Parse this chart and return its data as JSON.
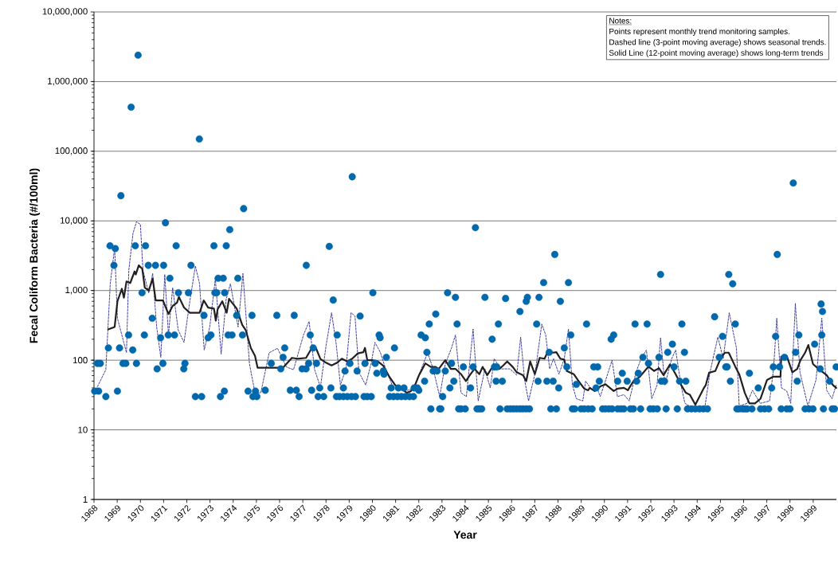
{
  "chart_data": {
    "type": "scatter",
    "xlabel": "Year",
    "ylabel": "Fecal Coliform Bacteria (#/100ml)",
    "annotations": [
      "Notes:",
      "Points represent monthly trend monitoring samples.",
      "Dashed line (3-point moving average) shows seasonal trends.",
      "Solid Line (12-point moving average) shows long-term trends"
    ],
    "xlim": [
      1968,
      2000
    ],
    "xticks": [
      1968,
      1969,
      1970,
      1971,
      1972,
      1973,
      1974,
      1975,
      1976,
      1977,
      1978,
      1979,
      1980,
      1981,
      1982,
      1983,
      1984,
      1985,
      1986,
      1987,
      1988,
      1989,
      1990,
      1991,
      1992,
      1993,
      1994,
      1995,
      1996,
      1997,
      1998,
      1999
    ],
    "ylim": [
      1,
      10000000
    ],
    "yticks": [
      1,
      10,
      100,
      {
        "value": 1000,
        "label": "1,000"
      },
      {
        "value": 10000,
        "label": "10,000"
      },
      {
        "value": 100000,
        "label": "100,000"
      },
      {
        "value": 1000000,
        "label": "1,000,000"
      },
      {
        "value": 10000000,
        "label": "10,000,000"
      }
    ],
    "log": "y",
    "grid": "y",
    "series": [
      {
        "marker": "circle",
        "color": "#0068ad",
        "x": [
          1968.03,
          1968.2,
          1968.15,
          1968.27,
          1968.51,
          1968.62,
          1968.69,
          1968.86,
          1968.92,
          1969.01,
          1969.1,
          1969.16,
          1969.25,
          1969.37,
          1969.49,
          1969.6,
          1969.67,
          1969.78,
          1969.83,
          1969.9,
          1970.07,
          1970.17,
          1970.22,
          1970.34,
          1970.51,
          1970.65,
          1970.72,
          1970.87,
          1970.97,
          1971.0,
          1971.08,
          1971.2,
          1971.27,
          1971.47,
          1971.54,
          1971.64,
          1971.87,
          1971.92,
          1972.07,
          1972.18,
          1972.37,
          1972.54,
          1972.64,
          1972.74,
          1972.92,
          1973.04,
          1973.17,
          1973.21,
          1973.29,
          1973.35,
          1973.45,
          1973.57,
          1973.62,
          1973.63,
          1973.7,
          1973.78,
          1973.85,
          1973.95,
          1974.15,
          1974.2,
          1974.4,
          1974.45,
          1974.64,
          1974.81,
          1974.85,
          1974.96,
          1975.02,
          1975.38,
          1975.64,
          1975.88,
          1976.05,
          1976.15,
          1976.22,
          1976.46,
          1976.63,
          1976.72,
          1976.84,
          1976.97,
          1977.14,
          1977.15,
          1977.25,
          1977.32,
          1977.38,
          1977.45,
          1977.59,
          1977.66,
          1977.73,
          1977.9,
          1978.14,
          1978.21,
          1978.31,
          1978.45,
          1978.48,
          1978.58,
          1978.75,
          1978.92,
          1979.1,
          1979.27,
          1978.75,
          1978.82,
          1979.03,
          1979.13,
          1979.34,
          1979.47,
          1979.64,
          1979.68,
          1979.78,
          1979.95,
          1980.02,
          1980.12,
          1980.19,
          1980.29,
          1980.33,
          1980.47,
          1980.5,
          1980.6,
          1980.74,
          1980.81,
          1980.91,
          1980.95,
          1981.08,
          1981.12,
          1981.25,
          1981.36,
          1981.42,
          1981.6,
          1981.77,
          1981.8,
          1981.94,
          1982.0,
          1982.1,
          1982.25,
          1982.28,
          1982.35,
          1982.45,
          1982.52,
          1982.62,
          1982.73,
          1982.79,
          1982.9,
          1982.95,
          1983.03,
          1983.14,
          1983.24,
          1983.34,
          1983.41,
          1983.51,
          1983.58,
          1983.65,
          1983.72,
          1983.82,
          1983.92,
          1984.0,
          1984.23,
          1984.34,
          1984.44,
          1984.51,
          1984.61,
          1984.71,
          1984.85,
          1985.16,
          1985.26,
          1985.33,
          1985.36,
          1985.43,
          1985.5,
          1985.6,
          1985.74,
          1985.81,
          1985.95,
          1986.08,
          1986.22,
          1986.36,
          1986.49,
          1986.63,
          1986.77,
          1986.36,
          1986.63,
          1986.68,
          1987.08,
          1987.14,
          1987.18,
          1987.38,
          1987.52,
          1987.62,
          1987.69,
          1987.79,
          1987.86,
          1987.93,
          1988.03,
          1988.1,
          1988.27,
          1988.38,
          1988.45,
          1988.55,
          1988.62,
          1988.79,
          1988.72,
          1988.99,
          1989.23,
          1989.13,
          1989.3,
          1989.47,
          1989.54,
          1989.64,
          1989.71,
          1989.78,
          1989.92,
          1990.05,
          1990.19,
          1990.29,
          1990.33,
          1990.4,
          1990.57,
          1990.57,
          1990.71,
          1990.77,
          1990.84,
          1990.98,
          1991.12,
          1991.25,
          1991.32,
          1991.39,
          1991.46,
          1991.56,
          1991.66,
          1991.84,
          1991.9,
          1991.97,
          1992.11,
          1992.28,
          1992.35,
          1992.42,
          1992.45,
          1992.59,
          1992.66,
          1992.73,
          1992.93,
          1993.0,
          1993.14,
          1993.24,
          1993.34,
          1993.45,
          1993.51,
          1993.58,
          1993.75,
          1993.92,
          1994.1,
          1994.27,
          1994.44,
          1994.75,
          1994.95,
          1995.09,
          1995.23,
          1995.29,
          1995.36,
          1995.43,
          1995.53,
          1995.64,
          1995.71,
          1995.81,
          1995.95,
          1996.05,
          1996.15,
          1996.25,
          1996.36,
          1996.63,
          1996.73,
          1996.9,
          1997.08,
          1997.21,
          1997.28,
          1997.38,
          1997.45,
          1997.55,
          1997.62,
          1997.76,
          1997.86,
          1998.0,
          1998.14,
          1998.24,
          1998.31,
          1998.38,
          1998.65,
          1998.82,
          1998.99,
          1999.06,
          1999.3,
          1999.34,
          1999.37,
          1999.4,
          1999.44,
          1999.71,
          1999.82,
          1999.92,
          1999.99
        ],
        "values": [
          36,
          36,
          90,
          90,
          30,
          150,
          4400,
          2300,
          4000,
          36,
          150,
          23000,
          90,
          90,
          230,
          430000,
          140,
          4400,
          90,
          2400000,
          930,
          230,
          4400,
          2300,
          400,
          2300,
          75,
          210,
          90,
          2300,
          9400,
          230,
          1500,
          230,
          4400,
          930,
          75,
          90,
          930,
          2300,
          30,
          150000,
          30,
          440,
          210,
          230,
          4400,
          930,
          930,
          1500,
          30,
          1500,
          36,
          930,
          4400,
          230,
          7500,
          230,
          440,
          1500,
          230,
          15000,
          36,
          440,
          30,
          36,
          30,
          37,
          90,
          440,
          75,
          110,
          150,
          37,
          440,
          37,
          30,
          75,
          75,
          2300,
          90,
          230,
          37,
          150,
          90,
          30,
          40,
          30,
          4300,
          40,
          730,
          30,
          230,
          30,
          30,
          30,
          30,
          30,
          40,
          70,
          90,
          43000,
          70,
          430,
          30,
          90,
          30,
          30,
          930,
          90,
          65,
          230,
          210,
          70,
          63,
          110,
          30,
          40,
          30,
          150,
          30,
          40,
          30,
          40,
          30,
          30,
          30,
          40,
          40,
          37,
          230,
          50,
          210,
          130,
          330,
          20,
          70,
          460,
          70,
          20,
          20,
          30,
          70,
          930,
          40,
          90,
          50,
          800,
          330,
          20,
          20,
          80,
          20,
          40,
          80,
          8000,
          20,
          20,
          20,
          800,
          200,
          80,
          50,
          80,
          330,
          20,
          50,
          770,
          20,
          20,
          20,
          20,
          20,
          20,
          20,
          20,
          500,
          700,
          800,
          330,
          50,
          800,
          1300,
          50,
          130,
          20,
          50,
          3300,
          20,
          40,
          700,
          150,
          80,
          1300,
          230,
          20,
          45,
          20,
          20,
          330,
          20,
          20,
          20,
          80,
          40,
          80,
          50,
          20,
          20,
          20,
          200,
          20,
          230,
          50,
          20,
          20,
          65,
          20,
          50,
          20,
          20,
          330,
          50,
          65,
          20,
          110,
          330,
          90,
          20,
          20,
          20,
          110,
          1700,
          50,
          50,
          20,
          130,
          170,
          80,
          20,
          50,
          330,
          130,
          50,
          20,
          20,
          20,
          20,
          20,
          20,
          420,
          110,
          220,
          80,
          80,
          1700,
          50,
          1250,
          330,
          20,
          20,
          20,
          20,
          20,
          65,
          20,
          40,
          20,
          20,
          20,
          40,
          80,
          220,
          3300,
          80,
          20,
          110,
          20,
          20,
          35000,
          130,
          50,
          230,
          20,
          20,
          20,
          170,
          75,
          640,
          230,
          500,
          20,
          50,
          20,
          20,
          80
        ]
      },
      {
        "type": "line",
        "line_style": "dashed",
        "color": "#2e2d8f",
        "x": [
          1968.09,
          1968.51,
          1968.7,
          1968.89,
          1969.01,
          1969.4,
          1969.5,
          1969.68,
          1969.83,
          1970.0,
          1970.11,
          1970.36,
          1970.53,
          1970.7,
          1970.88,
          1971.05,
          1971.21,
          1971.39,
          1971.63,
          1971.88,
          1972.13,
          1972.37,
          1972.55,
          1972.75,
          1972.99,
          1973.23,
          1973.48,
          1973.7,
          1973.88,
          1974.21,
          1974.42,
          1974.7,
          1974.94,
          1975.19,
          1975.55,
          1975.91,
          1976.29,
          1976.6,
          1977.03,
          1977.27,
          1977.51,
          1977.76,
          1978.0,
          1978.24,
          1978.44,
          1978.62,
          1978.86,
          1979.08,
          1979.25,
          1979.42,
          1979.71,
          1979.94,
          1980.11,
          1980.34,
          1980.57,
          1980.85,
          1981.18,
          1981.53,
          1981.77,
          1982.11,
          1982.38,
          1982.62,
          1982.9,
          1983.14,
          1983.41,
          1983.58,
          1983.82,
          1984.05,
          1984.34,
          1984.56,
          1984.85,
          1985.08,
          1985.25,
          1985.53,
          1985.93,
          1986.22,
          1986.39,
          1986.56,
          1986.73,
          1987.02,
          1987.3,
          1987.47,
          1987.64,
          1987.81,
          1988.04,
          1988.27,
          1988.45,
          1988.62,
          1988.79,
          1989.07,
          1989.19,
          1989.47,
          1989.64,
          1989.82,
          1990.04,
          1990.33,
          1990.56,
          1990.84,
          1991.07,
          1991.36,
          1991.58,
          1991.81,
          1992.04,
          1992.27,
          1992.42,
          1992.61,
          1992.9,
          1993.07,
          1993.3,
          1993.47,
          1993.87,
          1994.32,
          1994.55,
          1994.89,
          1995.12,
          1995.38,
          1995.69,
          1995.81,
          1996.15,
          1996.38,
          1996.72,
          1997.12,
          1997.29,
          1997.43,
          1997.63,
          1997.86,
          1998.03,
          1998.23,
          1998.43,
          1998.77,
          1999.12,
          1999.37,
          1999.58,
          1999.81,
          1999.99
        ],
        "values": [
          38,
          73,
          1250,
          4100,
          400,
          128,
          1950,
          6600,
          9700,
          8900,
          1950,
          920,
          1760,
          300,
          110,
          1700,
          230,
          1100,
          270,
          180,
          700,
          2250,
          1250,
          140,
          300,
          1480,
          122,
          760,
          1250,
          300,
          1760,
          89,
          34,
          34,
          128,
          148,
          80,
          73,
          230,
          360,
          73,
          41,
          160,
          480,
          170,
          44,
          75,
          480,
          430,
          67,
          44,
          88,
          180,
          130,
          75,
          44,
          37,
          37,
          40,
          75,
          128,
          75,
          30,
          88,
          150,
          230,
          34,
          30,
          280,
          26,
          75,
          40,
          105,
          75,
          75,
          61,
          215,
          52,
          26,
          67,
          330,
          230,
          75,
          105,
          63,
          105,
          280,
          44,
          28,
          26,
          50,
          37,
          44,
          30,
          50,
          100,
          30,
          32,
          26,
          67,
          105,
          140,
          28,
          44,
          210,
          44,
          105,
          140,
          44,
          24,
          20,
          20,
          67,
          215,
          105,
          480,
          150,
          22,
          24,
          37,
          24,
          26,
          75,
          400,
          40,
          36,
          24,
          650,
          67,
          22,
          52,
          400,
          37,
          28,
          44
        ]
      },
      {
        "type": "line",
        "line_style": "solid",
        "color": "#231f20",
        "x": [
          1968.61,
          1968.89,
          1969.01,
          1969.2,
          1969.29,
          1969.4,
          1969.56,
          1969.75,
          1969.8,
          1969.93,
          1970.08,
          1970.19,
          1970.36,
          1970.53,
          1970.66,
          1970.97,
          1971.21,
          1971.39,
          1971.58,
          1971.66,
          1971.88,
          1972.13,
          1972.55,
          1972.73,
          1972.92,
          1973.17,
          1973.25,
          1973.33,
          1973.53,
          1973.72,
          1973.82,
          1974.15,
          1974.39,
          1974.54,
          1974.76,
          1974.94,
          1975.05,
          1975.55,
          1976.15,
          1976.53,
          1976.77,
          1977.14,
          1977.38,
          1977.57,
          1977.76,
          1978.0,
          1978.24,
          1978.48,
          1978.68,
          1978.92,
          1979.13,
          1979.37,
          1979.61,
          1979.68,
          1979.78,
          1979.99,
          1980.23,
          1980.47,
          1980.74,
          1980.98,
          1981.18,
          1981.49,
          1981.66,
          1981.84,
          1982.0,
          1982.28,
          1982.52,
          1982.73,
          1982.86,
          1983.14,
          1983.38,
          1983.58,
          1983.82,
          1984.03,
          1984.23,
          1984.4,
          1984.61,
          1984.75,
          1984.95,
          1985.12,
          1985.29,
          1985.47,
          1985.64,
          1985.81,
          1986.05,
          1986.22,
          1986.49,
          1986.63,
          1986.8,
          1987.0,
          1987.21,
          1987.42,
          1987.59,
          1987.76,
          1987.93,
          1988.1,
          1988.27,
          1988.38,
          1988.68,
          1988.85,
          1989.13,
          1989.3,
          1989.37,
          1989.58,
          1989.82,
          1990.05,
          1990.4,
          1990.57,
          1990.84,
          1991.01,
          1991.25,
          1991.53,
          1991.9,
          1992.14,
          1992.35,
          1992.55,
          1992.83,
          1993.07,
          1993.31,
          1993.51,
          1993.68,
          1993.92,
          1994.1,
          1994.27,
          1994.37,
          1994.51,
          1994.78,
          1995.02,
          1995.19,
          1995.36,
          1995.64,
          1995.81,
          1996.05,
          1996.25,
          1996.49,
          1996.73,
          1997.01,
          1997.28,
          1997.59,
          1997.62,
          1997.86,
          1998.1,
          1998.31,
          1998.45,
          1998.65,
          1998.79,
          1998.99,
          1999.23,
          1999.58,
          1999.85,
          1999.99
        ],
        "values": [
          277,
          300,
          700,
          1060,
          790,
          1350,
          1280,
          1880,
          1700,
          2300,
          2050,
          1100,
          1000,
          1480,
          720,
          720,
          460,
          600,
          670,
          810,
          570,
          480,
          480,
          720,
          570,
          550,
          370,
          540,
          700,
          480,
          760,
          550,
          320,
          270,
          150,
          115,
          78,
          78,
          78,
          108,
          105,
          108,
          148,
          148,
          104,
          92,
          84,
          92,
          105,
          96,
          105,
          125,
          130,
          150,
          100,
          100,
          96,
          83,
          57,
          44,
          40,
          34,
          36,
          44,
          60,
          90,
          80,
          80,
          75,
          100,
          75,
          75,
          63,
          50,
          63,
          75,
          63,
          80,
          61,
          75,
          84,
          75,
          84,
          96,
          80,
          67,
          61,
          50,
          96,
          63,
          108,
          105,
          140,
          128,
          130,
          105,
          102,
          70,
          63,
          52,
          39,
          37,
          40,
          36,
          42,
          45,
          36,
          39,
          40,
          37,
          50,
          58,
          81,
          70,
          77,
          61,
          87,
          63,
          44,
          34,
          32,
          23,
          30,
          39,
          44,
          66,
          70,
          108,
          128,
          128,
          81,
          63,
          34,
          24,
          24,
          28,
          52,
          58,
          58,
          112,
          115,
          67,
          75,
          100,
          128,
          165,
          88,
          75,
          61,
          44,
          40
        ]
      }
    ]
  }
}
